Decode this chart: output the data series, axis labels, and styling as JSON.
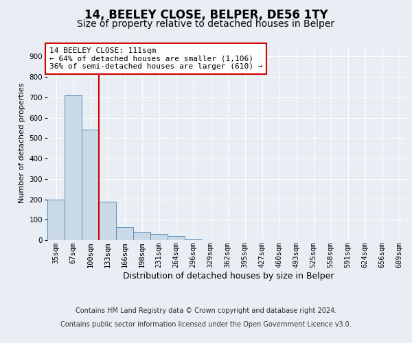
{
  "title_line1": "14, BEELEY CLOSE, BELPER, DE56 1TY",
  "title_line2": "Size of property relative to detached houses in Belper",
  "xlabel": "Distribution of detached houses by size in Belper",
  "ylabel": "Number of detached properties",
  "categories": [
    "35sqm",
    "67sqm",
    "100sqm",
    "133sqm",
    "166sqm",
    "198sqm",
    "231sqm",
    "264sqm",
    "296sqm",
    "329sqm",
    "362sqm",
    "395sqm",
    "427sqm",
    "460sqm",
    "493sqm",
    "525sqm",
    "558sqm",
    "591sqm",
    "624sqm",
    "656sqm",
    "689sqm"
  ],
  "values": [
    200,
    710,
    540,
    190,
    65,
    40,
    30,
    20,
    5,
    0,
    0,
    0,
    0,
    0,
    0,
    0,
    0,
    0,
    0,
    0,
    0
  ],
  "bar_color": "#c9d9e8",
  "bar_edge_color": "#5b8db8",
  "red_line_index": 2,
  "red_line_color": "#cc0000",
  "annotation_text_line1": "14 BEELEY CLOSE: 111sqm",
  "annotation_text_line2": "← 64% of detached houses are smaller (1,106)",
  "annotation_text_line3": "36% of semi-detached houses are larger (610) →",
  "annotation_box_color": "#cc0000",
  "annotation_box_facecolor": "white",
  "ylim": [
    0,
    950
  ],
  "yticks": [
    0,
    100,
    200,
    300,
    400,
    500,
    600,
    700,
    800,
    900
  ],
  "background_color": "#e8eef4",
  "footer_text_line1": "Contains HM Land Registry data © Crown copyright and database right 2024.",
  "footer_text_line2": "Contains public sector information licensed under the Open Government Licence v3.0.",
  "grid_color": "white",
  "title_fontsize": 12,
  "subtitle_fontsize": 10,
  "tick_fontsize": 7.5,
  "annotation_fontsize": 8,
  "footer_fontsize": 7,
  "ylabel_fontsize": 8,
  "xlabel_fontsize": 9
}
